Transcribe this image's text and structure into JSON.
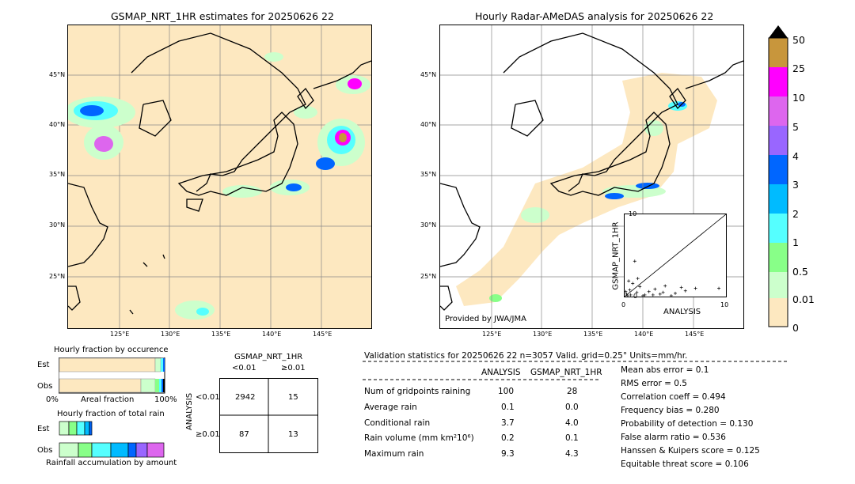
{
  "left_map": {
    "title": "GSMAP_NRT_1HR estimates for 20250626 22",
    "lat_labels": [
      "45°N",
      "40°N",
      "35°N",
      "30°N",
      "25°N"
    ],
    "lon_labels": [
      "125°E",
      "130°E",
      "135°E",
      "140°E",
      "145°E"
    ]
  },
  "right_map": {
    "title": "Hourly Radar-AMeDAS analysis for 20250626 22",
    "lat_labels": [
      "45°N",
      "40°N",
      "35°N",
      "30°N",
      "25°N"
    ],
    "lon_labels": [
      "125°E",
      "130°E",
      "135°E",
      "140°E",
      "145°E"
    ],
    "credit": "Provided by JWA/JMA"
  },
  "scatter": {
    "ylabel": "GSMAP_NRT_1HR",
    "xlabel": "ANALYSIS",
    "ticks": [
      "0",
      "2",
      "4",
      "6",
      "8",
      "10"
    ]
  },
  "colorbar": {
    "labels": [
      "50",
      "25",
      "10",
      "5",
      "4",
      "3",
      "2",
      "1",
      "0.5",
      "0.01",
      "0"
    ],
    "colors": [
      "#c8963c",
      "#ff00ff",
      "#dd66ee",
      "#9966ff",
      "#0066ff",
      "#00bbff",
      "#55ffff",
      "#88ff88",
      "#ccffcc",
      "#fde8c0"
    ]
  },
  "occurrence": {
    "title": "Hourly fraction by occurence",
    "rows": [
      "Est",
      "Obs"
    ],
    "axis_left": "0%",
    "axis_mid": "Areal fraction",
    "axis_right": "100%"
  },
  "total_rain": {
    "title": "Hourly fraction of total rain",
    "rows": [
      "Est",
      "Obs"
    ],
    "axis_label": "Rainfall accumulation by amount"
  },
  "contingency": {
    "title": "GSMAP_NRT_1HR",
    "col_headers": [
      "<0.01",
      "≥0.01"
    ],
    "row_axis": "ANALYSIS",
    "row_headers": [
      "<0.01",
      "≥0.01"
    ],
    "cells": [
      [
        "2942",
        "15"
      ],
      [
        "87",
        "13"
      ]
    ]
  },
  "validation": {
    "header": "Validation statistics for 20250626 22  n=3057 Valid. grid=0.25° Units=mm/hr.",
    "col_analysis": "ANALYSIS",
    "col_gsmap": "GSMAP_NRT_1HR",
    "rows": [
      {
        "label": "Num of gridpoints raining",
        "a": "100",
        "g": "28"
      },
      {
        "label": "Average rain",
        "a": "0.1",
        "g": "0.0"
      },
      {
        "label": "Conditional rain",
        "a": "3.7",
        "g": "4.0"
      },
      {
        "label": "Rain volume (mm km²10⁶)",
        "a": "0.2",
        "g": "0.1"
      },
      {
        "label": "Maximum rain",
        "a": "9.3",
        "g": "4.3"
      }
    ],
    "scores": [
      "Mean abs error =    0.1",
      "RMS error =    0.5",
      "Correlation coeff =  0.494",
      "Frequency bias =  0.280",
      "Probability of detection =  0.130",
      "False alarm ratio =  0.536",
      "Hanssen & Kuipers score =  0.125",
      "Equitable threat score =  0.106"
    ]
  },
  "chart_data": [
    {
      "type": "heatmap",
      "title": "GSMAP_NRT_1HR estimates for 20250626 22",
      "xlabel": "",
      "ylabel": "",
      "xlim": [
        120,
        150
      ],
      "ylim": [
        20,
        50
      ]
    },
    {
      "type": "heatmap",
      "title": "Hourly Radar-AMeDAS analysis for 20250626 22",
      "xlabel": "",
      "ylabel": "",
      "xlim": [
        120,
        150
      ],
      "ylim": [
        20,
        50
      ]
    },
    {
      "type": "scatter",
      "xlabel": "ANALYSIS",
      "ylabel": "GSMAP_NRT_1HR",
      "xlim": [
        0,
        10
      ],
      "ylim": [
        0,
        10
      ],
      "points": [
        [
          0.2,
          0.3
        ],
        [
          0.5,
          0.8
        ],
        [
          0.8,
          1.6
        ],
        [
          1.0,
          4.3
        ],
        [
          1.2,
          0.5
        ],
        [
          1.5,
          1.2
        ],
        [
          2.0,
          0.2
        ],
        [
          2.4,
          0.6
        ],
        [
          3.0,
          0.9
        ],
        [
          3.5,
          0.3
        ],
        [
          4.0,
          1.3
        ],
        [
          5.0,
          0.4
        ],
        [
          6.0,
          0.7
        ],
        [
          7.0,
          1.0
        ],
        [
          9.3,
          1.0
        ],
        [
          0.4,
          1.9
        ],
        [
          0.3,
          0.1
        ],
        [
          1.8,
          0.1
        ],
        [
          2.8,
          0.2
        ],
        [
          4.6,
          0.1
        ],
        [
          0.1,
          0.6
        ],
        [
          0.6,
          0.2
        ],
        [
          1.3,
          2.2
        ],
        [
          5.6,
          1.1
        ],
        [
          3.8,
          0.5
        ]
      ]
    }
  ]
}
